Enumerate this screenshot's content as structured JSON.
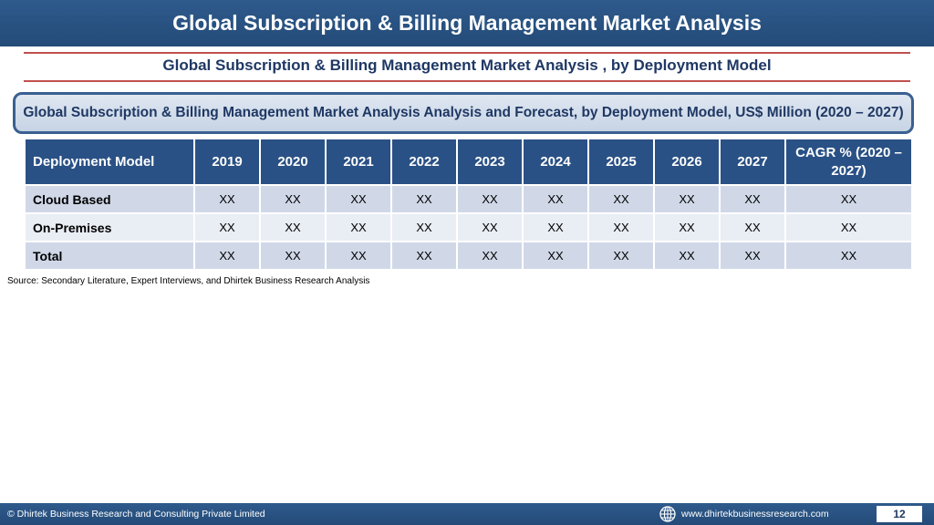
{
  "header": {
    "title": "Global Subscription & Billing Management Market Analysis"
  },
  "subtitle": "Global Subscription & Billing Management Market Analysis , by Deployment Model",
  "table_caption": "Global Subscription & Billing Management Market Analysis  Analysis and Forecast, by Deployment Model, US$ Million (2020 – 2027)",
  "table": {
    "columns": [
      "Deployment Model",
      "2019",
      "2020",
      "2021",
      "2022",
      "2023",
      "2024",
      "2025",
      "2026",
      "2027",
      "CAGR % (2020 – 2027)"
    ],
    "rows": [
      [
        "Cloud Based",
        "XX",
        "XX",
        "XX",
        "XX",
        "XX",
        "XX",
        "XX",
        "XX",
        "XX",
        "XX"
      ],
      [
        "On-Premises",
        "XX",
        "XX",
        "XX",
        "XX",
        "XX",
        "XX",
        "XX",
        "XX",
        "XX",
        "XX"
      ],
      [
        "Total",
        "XX",
        "XX",
        "XX",
        "XX",
        "XX",
        "XX",
        "XX",
        "XX",
        "XX",
        "XX"
      ]
    ]
  },
  "source": "Source: Secondary Literature, Expert Interviews, and Dhirtek Business Research Analysis",
  "footer": {
    "copyright": "© Dhirtek Business Research and Consulting Private Limited",
    "website": "www.dhirtekbusinessresearch.com",
    "page_number": "12",
    "globe_icon": "globe-icon"
  },
  "colors": {
    "header_bg": "#2a5185",
    "row_odd": "#d0d8e8",
    "row_even": "#e9edf4",
    "accent_line": "#c0504d",
    "title_text": "#1f3864"
  }
}
